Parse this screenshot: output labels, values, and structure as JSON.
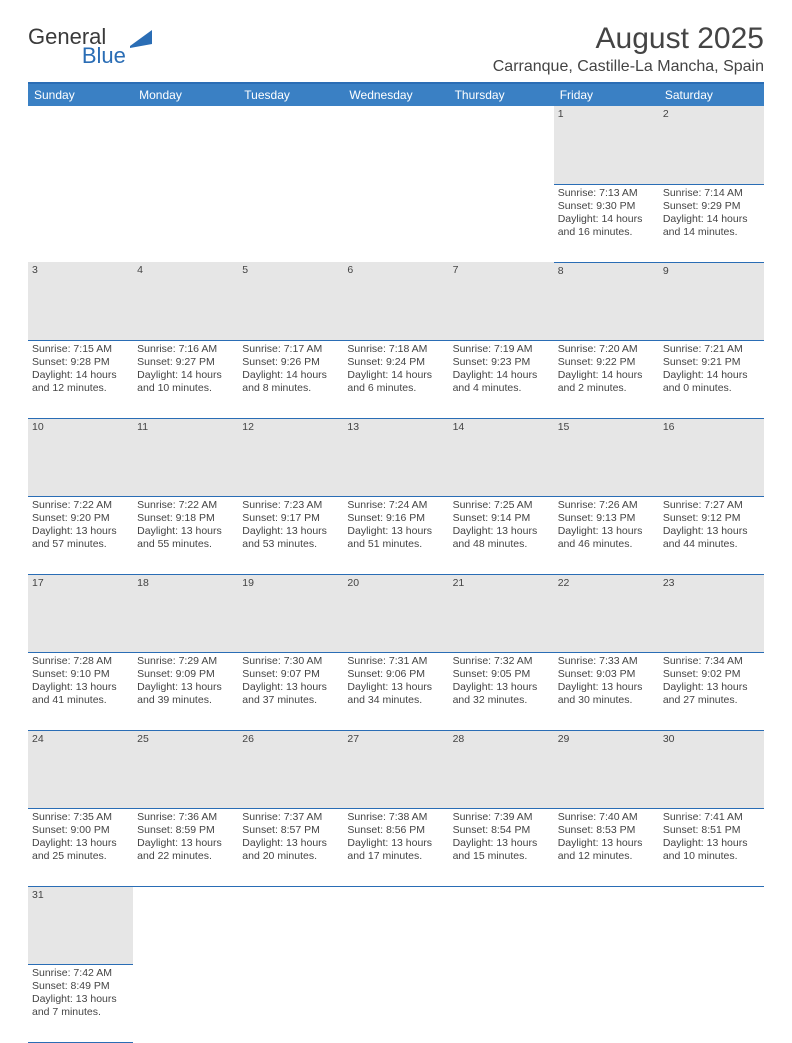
{
  "logo": {
    "part1": "General",
    "part2": "Blue",
    "shape_color": "#2a6db5"
  },
  "title": "August 2025",
  "location": "Carranque, Castille-La Mancha, Spain",
  "colors": {
    "header_bg": "#3a80c4",
    "header_text": "#ffffff",
    "border": "#2a6db5",
    "daynum_bg": "#e6e6e6",
    "text": "#444444"
  },
  "day_headers": [
    "Sunday",
    "Monday",
    "Tuesday",
    "Wednesday",
    "Thursday",
    "Friday",
    "Saturday"
  ],
  "weeks": [
    [
      null,
      null,
      null,
      null,
      null,
      {
        "n": "1",
        "sr": "7:13 AM",
        "ss": "9:30 PM",
        "dl": "14 hours and 16 minutes."
      },
      {
        "n": "2",
        "sr": "7:14 AM",
        "ss": "9:29 PM",
        "dl": "14 hours and 14 minutes."
      }
    ],
    [
      {
        "n": "3",
        "sr": "7:15 AM",
        "ss": "9:28 PM",
        "dl": "14 hours and 12 minutes."
      },
      {
        "n": "4",
        "sr": "7:16 AM",
        "ss": "9:27 PM",
        "dl": "14 hours and 10 minutes."
      },
      {
        "n": "5",
        "sr": "7:17 AM",
        "ss": "9:26 PM",
        "dl": "14 hours and 8 minutes."
      },
      {
        "n": "6",
        "sr": "7:18 AM",
        "ss": "9:24 PM",
        "dl": "14 hours and 6 minutes."
      },
      {
        "n": "7",
        "sr": "7:19 AM",
        "ss": "9:23 PM",
        "dl": "14 hours and 4 minutes."
      },
      {
        "n": "8",
        "sr": "7:20 AM",
        "ss": "9:22 PM",
        "dl": "14 hours and 2 minutes."
      },
      {
        "n": "9",
        "sr": "7:21 AM",
        "ss": "9:21 PM",
        "dl": "14 hours and 0 minutes."
      }
    ],
    [
      {
        "n": "10",
        "sr": "7:22 AM",
        "ss": "9:20 PM",
        "dl": "13 hours and 57 minutes."
      },
      {
        "n": "11",
        "sr": "7:22 AM",
        "ss": "9:18 PM",
        "dl": "13 hours and 55 minutes."
      },
      {
        "n": "12",
        "sr": "7:23 AM",
        "ss": "9:17 PM",
        "dl": "13 hours and 53 minutes."
      },
      {
        "n": "13",
        "sr": "7:24 AM",
        "ss": "9:16 PM",
        "dl": "13 hours and 51 minutes."
      },
      {
        "n": "14",
        "sr": "7:25 AM",
        "ss": "9:14 PM",
        "dl": "13 hours and 48 minutes."
      },
      {
        "n": "15",
        "sr": "7:26 AM",
        "ss": "9:13 PM",
        "dl": "13 hours and 46 minutes."
      },
      {
        "n": "16",
        "sr": "7:27 AM",
        "ss": "9:12 PM",
        "dl": "13 hours and 44 minutes."
      }
    ],
    [
      {
        "n": "17",
        "sr": "7:28 AM",
        "ss": "9:10 PM",
        "dl": "13 hours and 41 minutes."
      },
      {
        "n": "18",
        "sr": "7:29 AM",
        "ss": "9:09 PM",
        "dl": "13 hours and 39 minutes."
      },
      {
        "n": "19",
        "sr": "7:30 AM",
        "ss": "9:07 PM",
        "dl": "13 hours and 37 minutes."
      },
      {
        "n": "20",
        "sr": "7:31 AM",
        "ss": "9:06 PM",
        "dl": "13 hours and 34 minutes."
      },
      {
        "n": "21",
        "sr": "7:32 AM",
        "ss": "9:05 PM",
        "dl": "13 hours and 32 minutes."
      },
      {
        "n": "22",
        "sr": "7:33 AM",
        "ss": "9:03 PM",
        "dl": "13 hours and 30 minutes."
      },
      {
        "n": "23",
        "sr": "7:34 AM",
        "ss": "9:02 PM",
        "dl": "13 hours and 27 minutes."
      }
    ],
    [
      {
        "n": "24",
        "sr": "7:35 AM",
        "ss": "9:00 PM",
        "dl": "13 hours and 25 minutes."
      },
      {
        "n": "25",
        "sr": "7:36 AM",
        "ss": "8:59 PM",
        "dl": "13 hours and 22 minutes."
      },
      {
        "n": "26",
        "sr": "7:37 AM",
        "ss": "8:57 PM",
        "dl": "13 hours and 20 minutes."
      },
      {
        "n": "27",
        "sr": "7:38 AM",
        "ss": "8:56 PM",
        "dl": "13 hours and 17 minutes."
      },
      {
        "n": "28",
        "sr": "7:39 AM",
        "ss": "8:54 PM",
        "dl": "13 hours and 15 minutes."
      },
      {
        "n": "29",
        "sr": "7:40 AM",
        "ss": "8:53 PM",
        "dl": "13 hours and 12 minutes."
      },
      {
        "n": "30",
        "sr": "7:41 AM",
        "ss": "8:51 PM",
        "dl": "13 hours and 10 minutes."
      }
    ],
    [
      {
        "n": "31",
        "sr": "7:42 AM",
        "ss": "8:49 PM",
        "dl": "13 hours and 7 minutes."
      },
      null,
      null,
      null,
      null,
      null,
      null
    ]
  ],
  "labels": {
    "sunrise": "Sunrise: ",
    "sunset": "Sunset: ",
    "daylight": "Daylight: "
  }
}
